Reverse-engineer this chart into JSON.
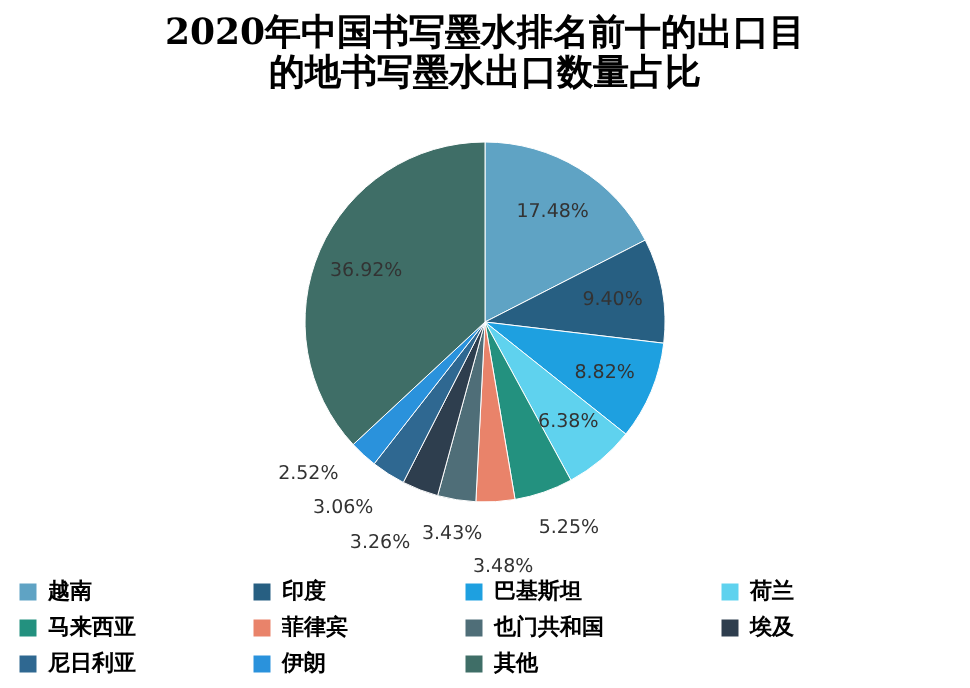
{
  "chart_data": {
    "type": "pie",
    "title": [
      "2020年中国书写墨水排名前十的出口目",
      "的地书写墨水出口数量占比"
    ],
    "categories": [
      "越南",
      "印度",
      "巴基斯坦",
      "荷兰",
      "马来西亚",
      "菲律宾",
      "也门共和国",
      "埃及",
      "尼日利亚",
      "伊朗",
      "其他"
    ],
    "values": [
      17.48,
      9.4,
      8.82,
      6.38,
      5.25,
      3.48,
      3.43,
      3.26,
      3.06,
      2.52,
      36.92
    ],
    "value_labels": [
      "17.48%",
      "9.40%",
      "8.82%",
      "6.38%",
      "5.25%",
      "3.48%",
      "3.43%",
      "3.26%",
      "3.06%",
      "2.52%",
      "36.92%"
    ],
    "colors": [
      "#5fa3c4",
      "#275f82",
      "#1ea0e0",
      "#5fd2ee",
      "#23917f",
      "#e9836a",
      "#4f6e78",
      "#2e3e4e",
      "#2f6891",
      "#2a92dc",
      "#3f6e67"
    ],
    "legend": "bottom"
  }
}
